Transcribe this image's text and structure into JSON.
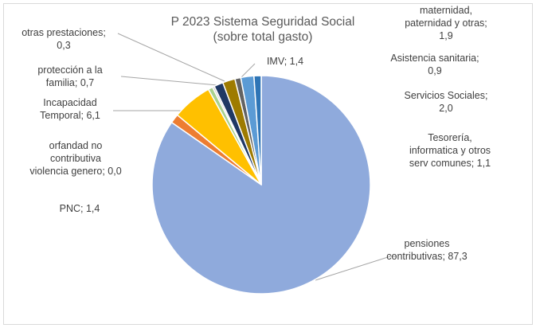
{
  "chart_data": {
    "type": "pie",
    "title": [
      "P 2023 Sistema Seguridad Social",
      "(sobre total gasto)"
    ],
    "slices": [
      {
        "name": "pensiones contributivas",
        "value": 87.3,
        "color": "#8faadc",
        "label": [
          "pensiones",
          "contributivas; 87,3"
        ]
      },
      {
        "name": "PNC",
        "value": 1.4,
        "color": "#ed7d31",
        "label": [
          "PNC; 1,4"
        ]
      },
      {
        "name": "orfandad no contributiva violencia genero",
        "value": 0.0,
        "color": "#a5a5a5",
        "label": [
          "orfandad no",
          "contributiva",
          "violencia genero; 0,0"
        ]
      },
      {
        "name": "Incapacidad Temporal",
        "value": 6.1,
        "color": "#ffc000",
        "label": [
          "Incapacidad",
          "Temporal; 6,1"
        ]
      },
      {
        "name": "protección a la familia",
        "value": 0.7,
        "color": "#a9d18e",
        "label": [
          "protección a la",
          "familia; 0,7"
        ]
      },
      {
        "name": "otras prestaciones",
        "value": 0.3,
        "color": "#c9c9c9",
        "label": [
          "otras prestaciones;",
          "0,3"
        ]
      },
      {
        "name": "IMV",
        "value": 1.4,
        "color": "#1f3864",
        "label": [
          "IMV; 1,4"
        ]
      },
      {
        "name": "maternidad, paternidad y otras",
        "value": 1.9,
        "color": "#9e7b00",
        "label": [
          "maternidad,",
          "paternidad y otras;",
          "1,9"
        ]
      },
      {
        "name": "Asistencia sanitaria",
        "value": 0.9,
        "color": "#636363",
        "label": [
          "Asistencia sanitaria;",
          "0,9"
        ]
      },
      {
        "name": "Servicios Sociales",
        "value": 2.0,
        "color": "#5b9bd5",
        "label": [
          "Servicios Sociales;",
          "2,0"
        ]
      },
      {
        "name": "Tesorería, informatica y otros serv comunes",
        "value": 1.1,
        "color": "#2e75b6",
        "label": [
          "Tesorería,",
          "informatica y otros",
          "serv comunes; 1,1"
        ]
      }
    ]
  }
}
